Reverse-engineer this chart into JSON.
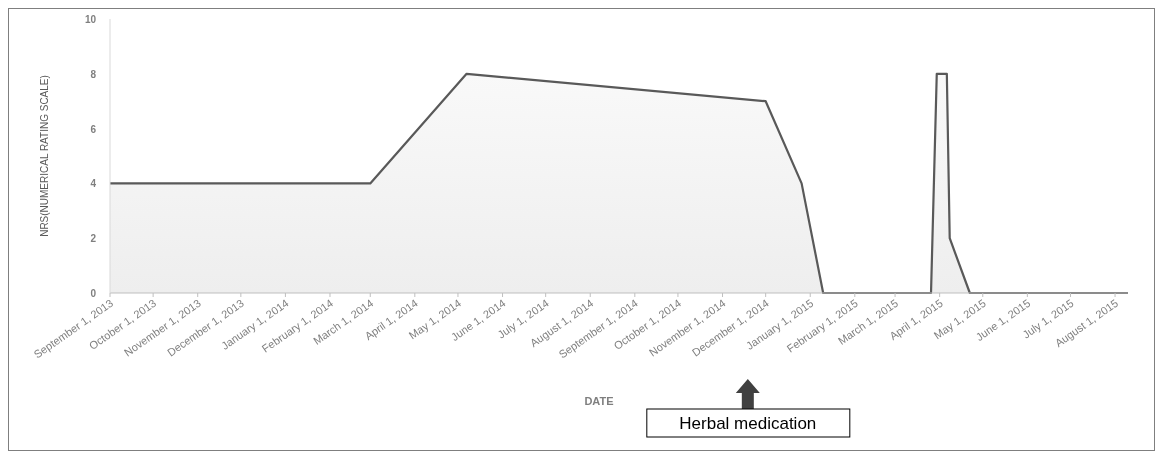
{
  "chart_data": {
    "type": "area",
    "xlabel": "DATE",
    "ylabel": "NRS(NUMERICAL RATING SCALE)",
    "x": [
      "2013-09-01",
      "2013-12-01",
      "2014-03-01",
      "2014-05-07",
      "2014-12-01",
      "2014-12-26",
      "2015-01-10",
      "2015-03-26",
      "2015-03-30",
      "2015-04-06",
      "2015-04-08",
      "2015-04-22",
      "2015-08-10"
    ],
    "series": [
      {
        "color": "#595959",
        "values": [
          4,
          4,
          4,
          8,
          7,
          4,
          0,
          0,
          8,
          8,
          2,
          0,
          0
        ]
      }
    ],
    "xlim": [
      "2013-09-01",
      "2015-08-10"
    ],
    "xticks": [
      {
        "value": "2013-09-01",
        "label": "September 1, 2013"
      },
      {
        "value": "2013-10-01",
        "label": "October 1, 2013"
      },
      {
        "value": "2013-11-01",
        "label": "November 1, 2013"
      },
      {
        "value": "2013-12-01",
        "label": "December 1, 2013"
      },
      {
        "value": "2014-01-01",
        "label": "January 1, 2014"
      },
      {
        "value": "2014-02-01",
        "label": "February 1, 2014"
      },
      {
        "value": "2014-03-01",
        "label": "March 1, 2014"
      },
      {
        "value": "2014-04-01",
        "label": "April 1, 2014"
      },
      {
        "value": "2014-05-01",
        "label": "May 1, 2014"
      },
      {
        "value": "2014-06-01",
        "label": "June 1, 2014"
      },
      {
        "value": "2014-07-01",
        "label": "July 1, 2014"
      },
      {
        "value": "2014-08-01",
        "label": "August 1, 2014"
      },
      {
        "value": "2014-09-01",
        "label": "September 1, 2014"
      },
      {
        "value": "2014-10-01",
        "label": "October 1, 2014"
      },
      {
        "value": "2014-11-01",
        "label": "November 1, 2014"
      },
      {
        "value": "2014-12-01",
        "label": "December 1, 2014"
      },
      {
        "value": "2015-01-01",
        "label": "January 1, 2015"
      },
      {
        "value": "2015-02-01",
        "label": "February 1, 2015"
      },
      {
        "value": "2015-03-01",
        "label": "March 1, 2015"
      },
      {
        "value": "2015-04-01",
        "label": "April 1, 2015"
      },
      {
        "value": "2015-05-01",
        "label": "May 1, 2015"
      },
      {
        "value": "2015-06-01",
        "label": "June 1, 2015"
      },
      {
        "value": "2015-07-01",
        "label": "July 1, 2015"
      },
      {
        "value": "2015-08-01",
        "label": "August 1, 2015"
      }
    ],
    "ylim": [
      0,
      10
    ],
    "yticks": [
      0,
      2,
      4,
      6,
      8,
      10
    ],
    "annotations": [
      "Herbal medication"
    ]
  }
}
